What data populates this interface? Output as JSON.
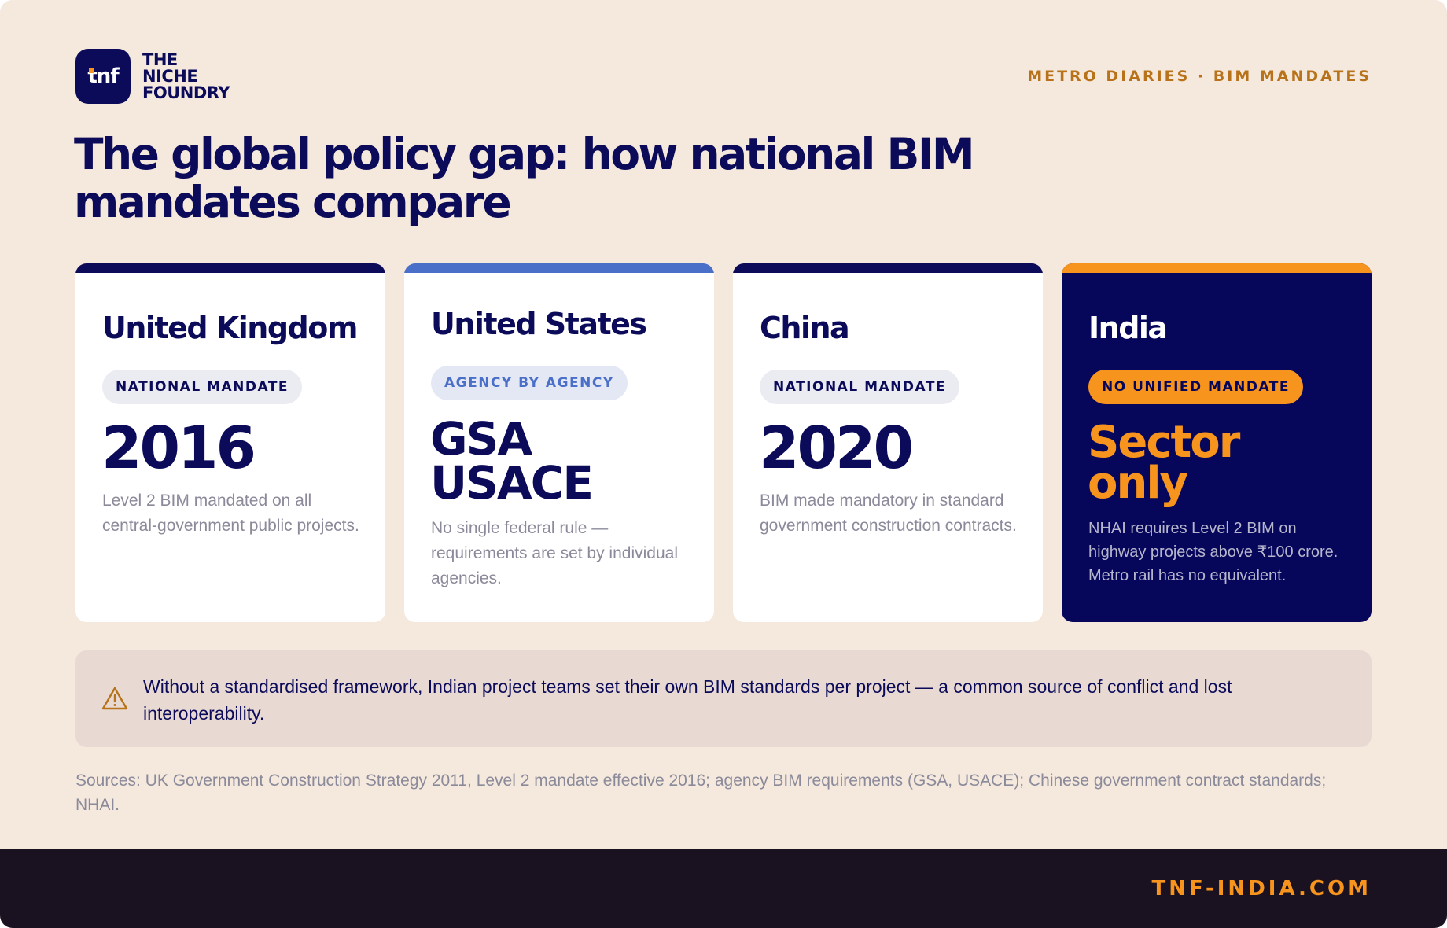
{
  "brand": {
    "logo_text": "tnf",
    "name_lines": [
      "THE",
      "NICHE",
      "FOUNDRY"
    ]
  },
  "kicker": "METRO DIARIES · BIM MANDATES",
  "title": "The global policy gap: how national BIM mandates compare",
  "cards": [
    {
      "country": "United Kingdom",
      "badge": "NATIONAL MANDATE",
      "headline": "2016",
      "description": "Level 2 BIM mandated on all central-government public projects.",
      "accent_color": "#0b0b5a"
    },
    {
      "country": "United States",
      "badge": "AGENCY BY AGENCY",
      "headline_lines": [
        "GSA",
        "USACE"
      ],
      "description": "No single federal rule — requirements are set by individual agencies.",
      "accent_color": "#4a6fc9"
    },
    {
      "country": "China",
      "badge": "NATIONAL MANDATE",
      "headline": "2020",
      "description": "BIM made mandatory in standard government construction contracts.",
      "accent_color": "#0b0b5a"
    },
    {
      "country": "India",
      "badge": "NO UNIFIED MANDATE",
      "headline_lines": [
        "Sector",
        "only"
      ],
      "description": "NHAI requires Level 2 BIM on highway projects above ₹100 crore. Metro rail has no equivalent.",
      "accent_color": "#f7941d"
    }
  ],
  "callout": {
    "icon": "warning-icon",
    "text": "Without a standardised framework, Indian project teams set their own BIM standards per project — a common source of conflict and lost interoperability."
  },
  "sources": "Sources: UK Government Construction Strategy 2011, Level 2 mandate effective 2016; agency BIM requirements (GSA, USACE); Chinese government contract standards; NHAI.",
  "footer_url": "TNF-INDIA.COM",
  "colors": {
    "navy": "#0b0b5a",
    "orange": "#f7941d",
    "background": "#f5e8dd",
    "footer": "#1a1220"
  }
}
